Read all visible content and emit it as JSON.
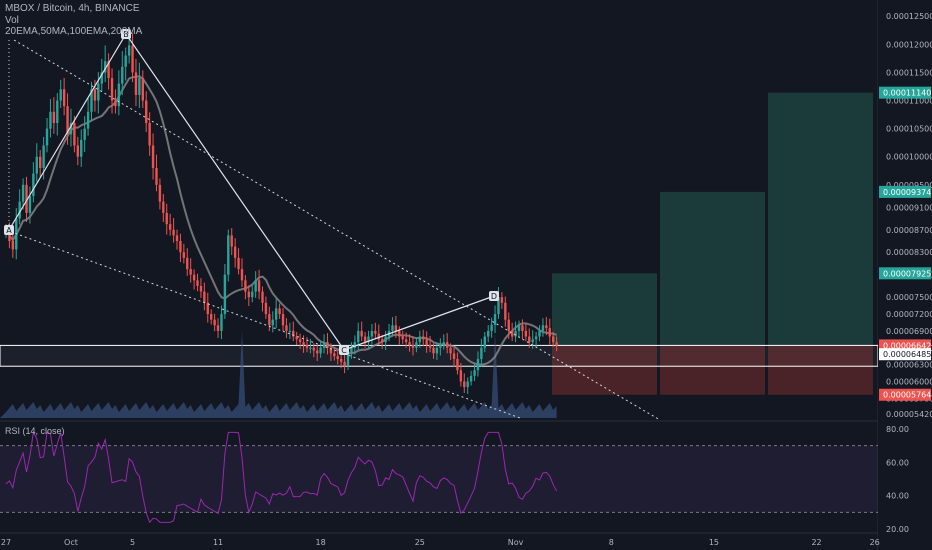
{
  "header": {
    "symbol_line": "MBOX / Bitcoin, 4h, BINANCE",
    "vol_line": "Vol",
    "ema_line": "20EMA,50MA,100EMA,200MA",
    "rsi_line": "RSI (14, close)"
  },
  "colors": {
    "background": "#131722",
    "up": "#26a69a",
    "down": "#ef5350",
    "grid": "#1e222d",
    "ma": "#8c8c8c",
    "rsi": "#9c27b0",
    "profit_zone": "#1b3a3a",
    "loss_zone": "#4a2328"
  },
  "chart_data": {
    "type": "candlestick",
    "price_axis_ticks": [
      "0.00012500",
      "0.00012000",
      "0.00011500",
      "0.00011000",
      "0.00010500",
      "0.00010000",
      "0.00009500",
      "0.00009100",
      "0.00008700",
      "0.00008300",
      "0.00007900",
      "0.00007500",
      "0.00007200",
      "0.00006900",
      "0.00006600",
      "0.00006300",
      "0.00006000",
      "0.00005700",
      "0.00005420"
    ],
    "x_axis_ticks": [
      "27",
      "Oct",
      "5",
      "11",
      "18",
      "25",
      "Nov",
      "8",
      "15",
      "22",
      "26"
    ],
    "rsi_axis_ticks": [
      "80.00",
      "60.00",
      "40.00",
      "20.00"
    ],
    "price_tags": [
      {
        "label": "0.00011140",
        "value": 0.0001114,
        "color": "#26a69a"
      },
      {
        "label": "0.00009374",
        "value": 9.374e-05,
        "color": "#26a69a"
      },
      {
        "label": "0.00007925",
        "value": 7.925e-05,
        "color": "#26a69a"
      },
      {
        "label": "0.00006642",
        "value": 6.642e-05,
        "color": "#ef5350"
      },
      {
        "label": "0.00006485",
        "value": 6.485e-05,
        "color": "#ffffff"
      },
      {
        "label": "0.00005764",
        "value": 5.764e-05,
        "color": "#ef5350"
      }
    ],
    "pattern_points": [
      {
        "label": "A",
        "bar": 2,
        "price": 8.35e-05
      },
      {
        "label": "B",
        "bar": 36,
        "price": 0.0001198
      },
      {
        "label": "C",
        "bar": 99,
        "price": 6.28e-05
      },
      {
        "label": "D",
        "bar": 142,
        "price": 7.01e-05
      }
    ],
    "close_approx": [
      8.7e-05,
      8.5e-05,
      8.35e-05,
      8.9e-05,
      9.2e-05,
      9.5e-05,
      9e-05,
      9.3e-05,
      9.7e-05,
      0.0001,
      9.8e-05,
      0.000102,
      0.000105,
      0.000108,
      0.000106,
      0.00011,
      0.000112,
      0.000109,
      0.000104,
      0.000106,
      0.000102,
      0.0001,
      0.000103,
      0.000105,
      0.000108,
      0.000112,
      0.00011,
      0.000113,
      0.000115,
      0.000117,
      0.000114,
      0.00011,
      0.000109,
      0.000113,
      0.000116,
      0.000118,
      0.0001198,
      0.000115,
      0.000111,
      0.000114,
      0.00011,
      0.000106,
      0.000102,
      9.8e-05,
      9.5e-05,
      9.2e-05,
      9e-05,
      8.8e-05,
      8.7e-05,
      8.6e-05,
      8.5e-05,
      8.3e-05,
      8.2e-05,
      8e-05,
      7.9e-05,
      7.8e-05,
      7.7e-05,
      7.6e-05,
      7.4e-05,
      7.2e-05,
      7.1e-05,
      7e-05,
      6.9e-05,
      7.2e-05,
      7.9e-05,
      8.6e-05,
      8.4e-05,
      8.2e-05,
      8e-05,
      7.8e-05,
      7.6e-05,
      7.5e-05,
      7.6e-05,
      7.8e-05,
      7.6e-05,
      7.4e-05,
      7.2e-05,
      7e-05,
      7.1e-05,
      7.3e-05,
      7.2e-05,
      7e-05,
      6.9e-05,
      6.9e-05,
      6.8e-05,
      6.75e-05,
      6.7e-05,
      6.65e-05,
      6.6e-05,
      6.6e-05,
      6.55e-05,
      6.5e-05,
      6.6e-05,
      6.7e-05,
      6.6e-05,
      6.5e-05,
      6.45e-05,
      6.4e-05,
      6.35e-05,
      6.28e-05,
      6.5e-05,
      6.6e-05,
      6.7e-05,
      6.9e-05,
      6.8e-05,
      6.7e-05,
      6.8e-05,
      6.9e-05,
      6.85e-05,
      6.75e-05,
      6.7e-05,
      6.8e-05,
      6.9e-05,
      7e-05,
      6.9e-05,
      6.8e-05,
      6.75e-05,
      6.7e-05,
      6.65e-05,
      6.6e-05,
      6.7e-05,
      6.8e-05,
      6.75e-05,
      6.65e-05,
      6.6e-05,
      6.5e-05,
      6.6e-05,
      6.65e-05,
      6.7e-05,
      6.6e-05,
      6.5e-05,
      6.4e-05,
      6.2e-05,
      6e-05,
      5.9e-05,
      6e-05,
      6.1e-05,
      6.2e-05,
      6.4e-05,
      6.6e-05,
      6.8e-05,
      6.9e-05,
      7.01e-05,
      7.2e-05,
      7.5e-05,
      7.4e-05,
      7.1e-05,
      6.9e-05,
      6.8e-05,
      6.9e-05,
      7e-05,
      6.9e-05,
      6.8e-05,
      6.7e-05,
      6.75e-05,
      6.8e-05,
      6.9e-05,
      7e-05,
      6.95e-05,
      6.8e-05,
      6.7e-05,
      6.64e-05
    ],
    "trade_box": {
      "entry": 6.642e-05,
      "stop": 5.764e-05,
      "targets": [
        7.925e-05,
        9.374e-05,
        0.0001114
      ]
    },
    "support_box": {
      "top": 6.642e-05,
      "bottom": 6.485e-05
    },
    "rsi_levels": [
      70,
      30
    ],
    "grid": false
  }
}
